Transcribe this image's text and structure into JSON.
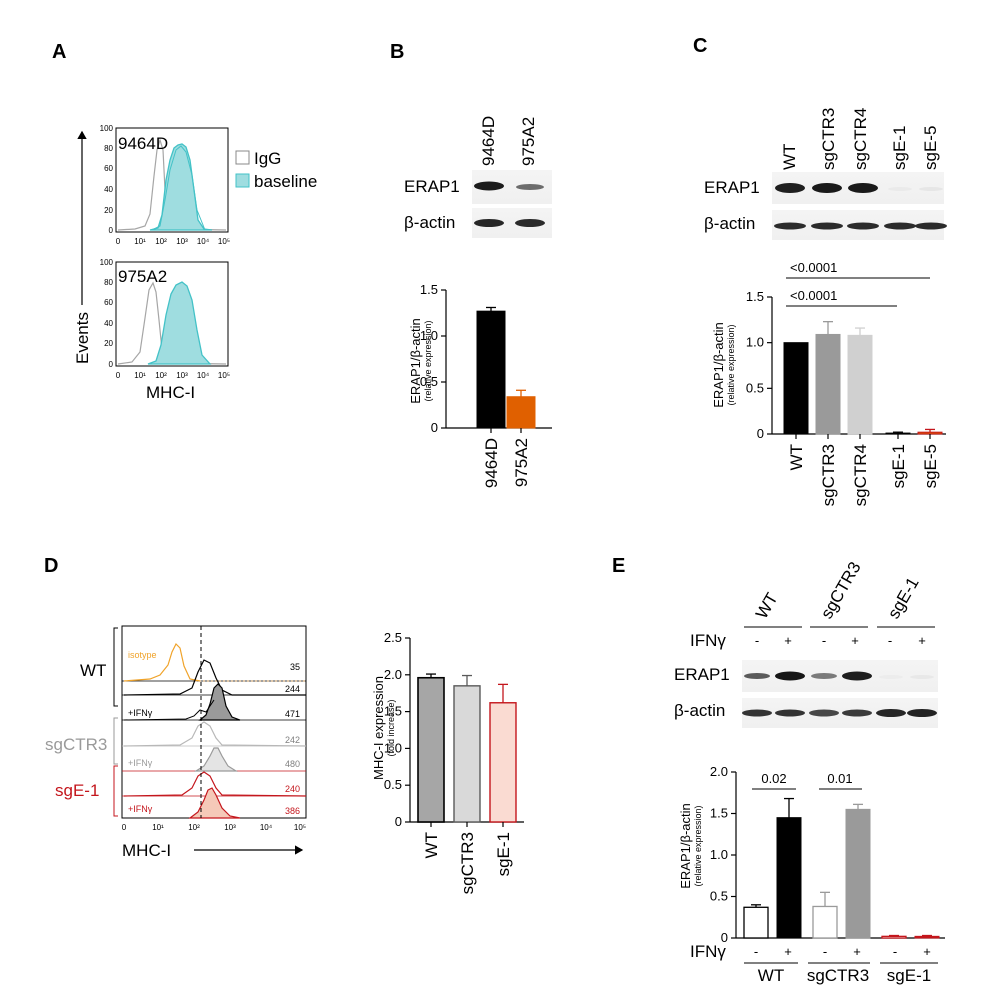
{
  "panels": {
    "A": {
      "label": "A",
      "top_sample": "9464D",
      "bottom_sample": "975A2",
      "legend": [
        {
          "label": "IgG",
          "color": "#ffffff"
        },
        {
          "label": "baseline",
          "color": "#9fdde0"
        }
      ],
      "ylabel": "Events",
      "xlabel": "MHC-I",
      "yticks": [
        "0",
        "20",
        "40",
        "60",
        "80",
        "100"
      ],
      "xticks": [
        "0",
        "10¹",
        "10²",
        "10³",
        "10⁴",
        "10⁵"
      ],
      "colors": {
        "isotype": "#a6a6a6",
        "baseline": "#43c2c7",
        "baseline_fill": "#9fdde0"
      }
    },
    "B": {
      "label": "B",
      "lanes": [
        "9464D",
        "975A2"
      ],
      "blot_rows": [
        "ERAP1",
        "β-actin"
      ],
      "ylabel": "ERAP1/β-actin",
      "ylabel_sub": "(relative expression)",
      "colors": [
        "#000000",
        "#e06000"
      ]
    },
    "C": {
      "label": "C",
      "lanes": [
        "WT",
        "sgCTR3",
        "sgCTR4",
        "sgE-1",
        "sgE-5"
      ],
      "blot_rows": [
        "ERAP1",
        "β-actin"
      ],
      "ylabel": "ERAP1/β-actin",
      "ylabel_sub": "(relative expression)",
      "p_values": [
        "<0.0001",
        "<0.0001"
      ],
      "colors": [
        "#000000",
        "#9a9a9a",
        "#d0d0d0",
        "#000000",
        "#e06000"
      ]
    },
    "D": {
      "label": "D",
      "groups": [
        "WT",
        "sgCTR3",
        "sgE-1"
      ],
      "group_colors": [
        "#000000",
        "#9a9a9a",
        "#c4161c"
      ],
      "isotype_label": "isotype",
      "ifn_label": "+IFNγ",
      "mfi": [
        "35",
        "244",
        "471",
        "242",
        "480",
        "240",
        "386"
      ],
      "mfi_colors": [
        "#000000",
        "#000000",
        "#000000",
        "#7f7f7f",
        "#7f7f7f",
        "#c4161c",
        "#c4161c"
      ],
      "xlabel": "MHC-I",
      "xticks": [
        "0",
        "10¹",
        "10²",
        "10³",
        "10⁴",
        "10⁵"
      ],
      "ylabel": "MHC-I expression",
      "ylabel_sub": "(fold increase)"
    },
    "E": {
      "label": "E",
      "blot_groups": [
        "WT",
        "sgCTR3",
        "sgE-1"
      ],
      "treatment": "IFNγ",
      "signs": [
        "-",
        "+",
        "-",
        "+",
        "-",
        "+"
      ],
      "blot_rows": [
        "ERAP1",
        "β-actin"
      ],
      "ylabel": "ERAP1/β-actin",
      "ylabel_sub": "(relative expression)",
      "p_values": [
        "0.02",
        "0.01"
      ],
      "xgroups": [
        "WT",
        "sgCTR3",
        "sgE-1"
      ]
    }
  },
  "chart_data": [
    {
      "type": "bar",
      "panel": "B",
      "categories": [
        "9464D",
        "975A2"
      ],
      "values": [
        1.27,
        0.34
      ],
      "errors": [
        0.04,
        0.07
      ],
      "ylabel": "ERAP1/β-actin (relative expression)",
      "ylim": [
        0,
        1.5
      ],
      "yticks": [
        0,
        0.5,
        1.0,
        1.5
      ],
      "ytick_labels": [
        "0",
        "0.5",
        "1.0",
        "1.5"
      ]
    },
    {
      "type": "bar",
      "panel": "C",
      "categories": [
        "WT",
        "sgCTR3",
        "sgCTR4",
        "sgE-1",
        "sgE-5"
      ],
      "values": [
        1.0,
        1.09,
        1.08,
        0.01,
        0.02
      ],
      "errors": [
        0.0,
        0.14,
        0.08,
        0.01,
        0.03
      ],
      "ylabel": "ERAP1/β-actin (relative expression)",
      "ylim": [
        0,
        1.5
      ],
      "yticks": [
        0,
        0.5,
        1.0,
        1.5
      ],
      "ytick_labels": [
        "0",
        "0.5",
        "1.0",
        "1.5"
      ]
    },
    {
      "type": "bar",
      "panel": "D",
      "categories": [
        "WT",
        "sgCTR3",
        "sgE-1"
      ],
      "values": [
        1.96,
        1.85,
        1.62
      ],
      "errors": [
        0.05,
        0.14,
        0.25
      ],
      "ylabel": "MHC-I expression (fold increase)",
      "ylim": [
        0,
        2.5
      ],
      "yticks": [
        0,
        0.5,
        1.0,
        1.5,
        2.0,
        2.5
      ],
      "ytick_labels": [
        "0",
        "0.5",
        "1.0",
        "1.5",
        "2.0",
        "2.5"
      ]
    },
    {
      "type": "bar",
      "panel": "E",
      "categories": [
        "WT -",
        "WT +",
        "sgCTR3 -",
        "sgCTR3 +",
        "sgE-1 -",
        "sgE-1 +"
      ],
      "values": [
        0.37,
        1.45,
        0.38,
        1.55,
        0.02,
        0.02
      ],
      "errors": [
        0.03,
        0.23,
        0.17,
        0.06,
        0.01,
        0.01
      ],
      "ylabel": "ERAP1/β-actin (relative expression)",
      "ylim": [
        0,
        2.0
      ],
      "yticks": [
        0,
        0.5,
        1.0,
        1.5,
        2.0
      ],
      "ytick_labels": [
        "0",
        "0.5",
        "1.0",
        "1.5",
        "2.0"
      ]
    }
  ]
}
